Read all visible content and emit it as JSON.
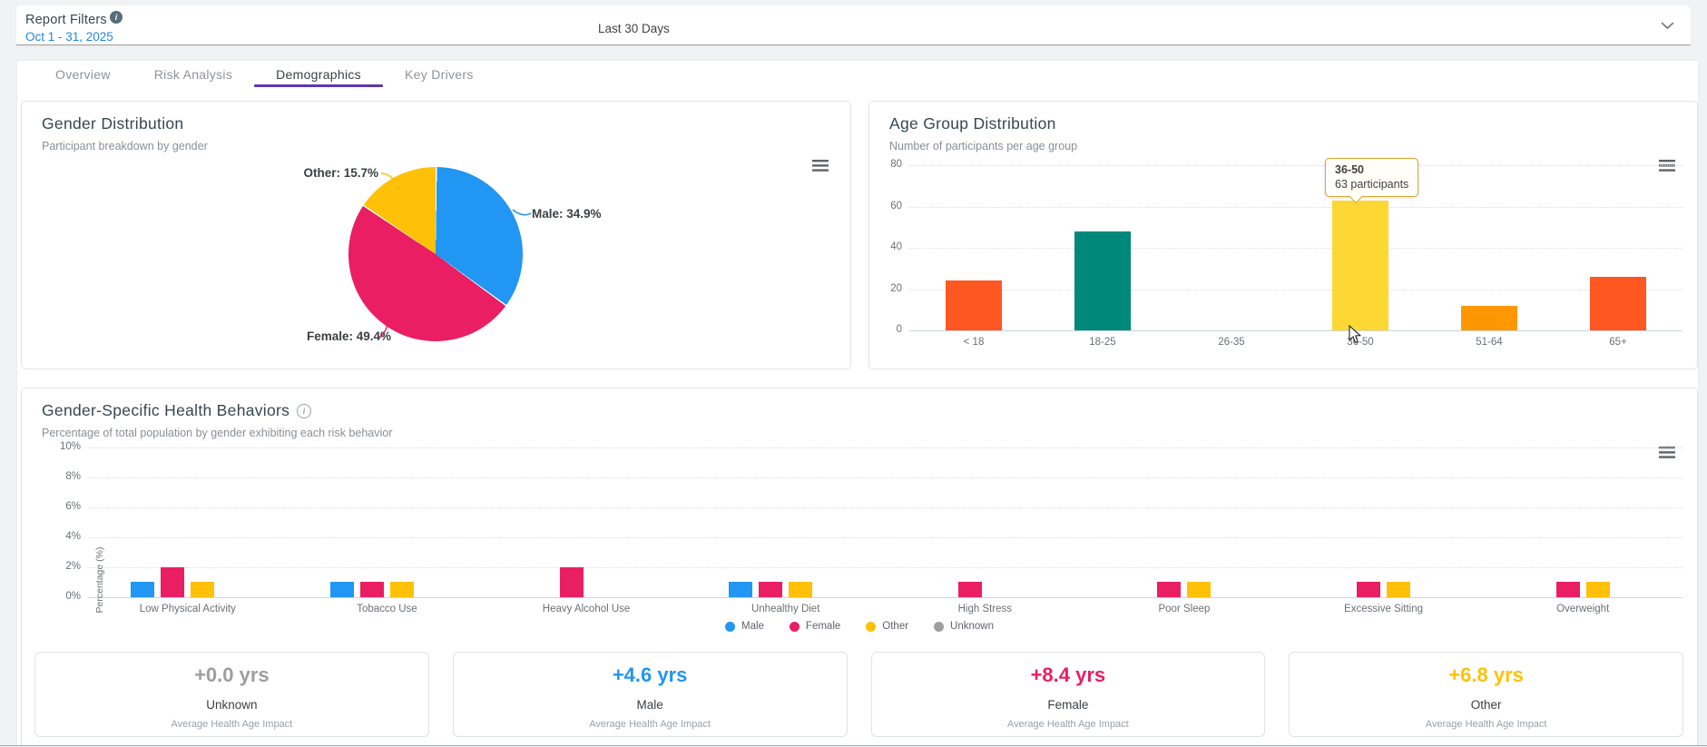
{
  "filter_bar": {
    "title": "Report Filters",
    "date_range": "Oct 1 - 31, 2025",
    "period_label": "Last 30 Days"
  },
  "tabs": [
    {
      "label": "Overview",
      "active": false
    },
    {
      "label": "Risk Analysis",
      "active": false
    },
    {
      "label": "Demographics",
      "active": true
    },
    {
      "label": "Key Drivers",
      "active": false
    }
  ],
  "cards": {
    "gender": {
      "title": "Gender Distribution",
      "subtitle": "Participant breakdown by gender"
    },
    "age": {
      "title": "Age Group Distribution",
      "subtitle": "Number of participants per age group",
      "tooltip": {
        "title": "36-50",
        "text": "63 participants"
      }
    },
    "behaviors": {
      "title": "Gender-Specific Health Behaviors",
      "subtitle": "Percentage of total population by gender exhibiting each risk behavior"
    }
  },
  "chart_data": [
    {
      "id": "gender-distribution-pie",
      "type": "pie",
      "title": "Gender Distribution",
      "labels": [
        "Male",
        "Female",
        "Other"
      ],
      "values": [
        34.9,
        49.4,
        15.7
      ],
      "unit": "%",
      "colors": [
        "#2196f3",
        "#e91e63",
        "#ffc107"
      ],
      "point_labels": [
        "Male: 34.9%",
        "Female: 49.4%",
        "Other: 15.7%"
      ]
    },
    {
      "id": "age-group-distribution-bar",
      "type": "bar",
      "title": "Age Group Distribution",
      "categories": [
        "< 18",
        "18-25",
        "26-35",
        "36-50",
        "51-64",
        "65+"
      ],
      "values": [
        24,
        48,
        0,
        63,
        12,
        26
      ],
      "bar_colors": [
        "#ff5722",
        "#00897b",
        null,
        "#fdd835",
        "#ff9800",
        "#ff5722"
      ],
      "ylim": [
        0,
        80
      ],
      "yticks": [
        0,
        20,
        40,
        60,
        80
      ],
      "grid": "dotted-horizontal",
      "highlight": {
        "category": "36-50",
        "participants": 63
      }
    },
    {
      "id": "gender-health-behaviors-grouped-bar",
      "type": "bar",
      "title": "Gender-Specific Health Behaviors",
      "categories": [
        "Low Physical Activity",
        "Tobacco Use",
        "Heavy Alcohol Use",
        "Unhealthy Diet",
        "High Stress",
        "Poor Sleep",
        "Excessive Sitting",
        "Overweight"
      ],
      "series": [
        {
          "name": "Male",
          "color": "#2196f3",
          "values": [
            1,
            1,
            0,
            1,
            0,
            0,
            0,
            0
          ]
        },
        {
          "name": "Female",
          "color": "#e91e63",
          "values": [
            2,
            1,
            2,
            1,
            1,
            1,
            1,
            1
          ]
        },
        {
          "name": "Other",
          "color": "#ffc107",
          "values": [
            1,
            1,
            0,
            1,
            0,
            1,
            1,
            1
          ]
        },
        {
          "name": "Unknown",
          "color": "#9e9e9e",
          "values": [
            0,
            0,
            0,
            0,
            0,
            0,
            0,
            0
          ]
        }
      ],
      "ylabel": "Percentage (%)",
      "ylim": [
        0,
        10
      ],
      "ytick_labels": [
        "0%",
        "2%",
        "4%",
        "6%",
        "8%",
        "10%"
      ],
      "legend_position": "bottom"
    }
  ],
  "stat_cards": [
    {
      "value": "+0.0 yrs",
      "label": "Unknown",
      "caption": "Average Health Age Impact",
      "color": "#9e9e9e"
    },
    {
      "value": "+4.6 yrs",
      "label": "Male",
      "caption": "Average Health Age Impact",
      "color": "#2196f3"
    },
    {
      "value": "+8.4 yrs",
      "label": "Female",
      "caption": "Average Health Age Impact",
      "color": "#e91e63"
    },
    {
      "value": "+6.8 yrs",
      "label": "Other",
      "caption": "Average Health Age Impact",
      "color": "#ffc107"
    }
  ],
  "colors": {
    "active_tab_underline": "#5e35b1",
    "link": "#1e88e5",
    "male": "#2196f3",
    "female": "#e91e63",
    "other": "#ffc107",
    "unknown": "#9e9e9e"
  }
}
